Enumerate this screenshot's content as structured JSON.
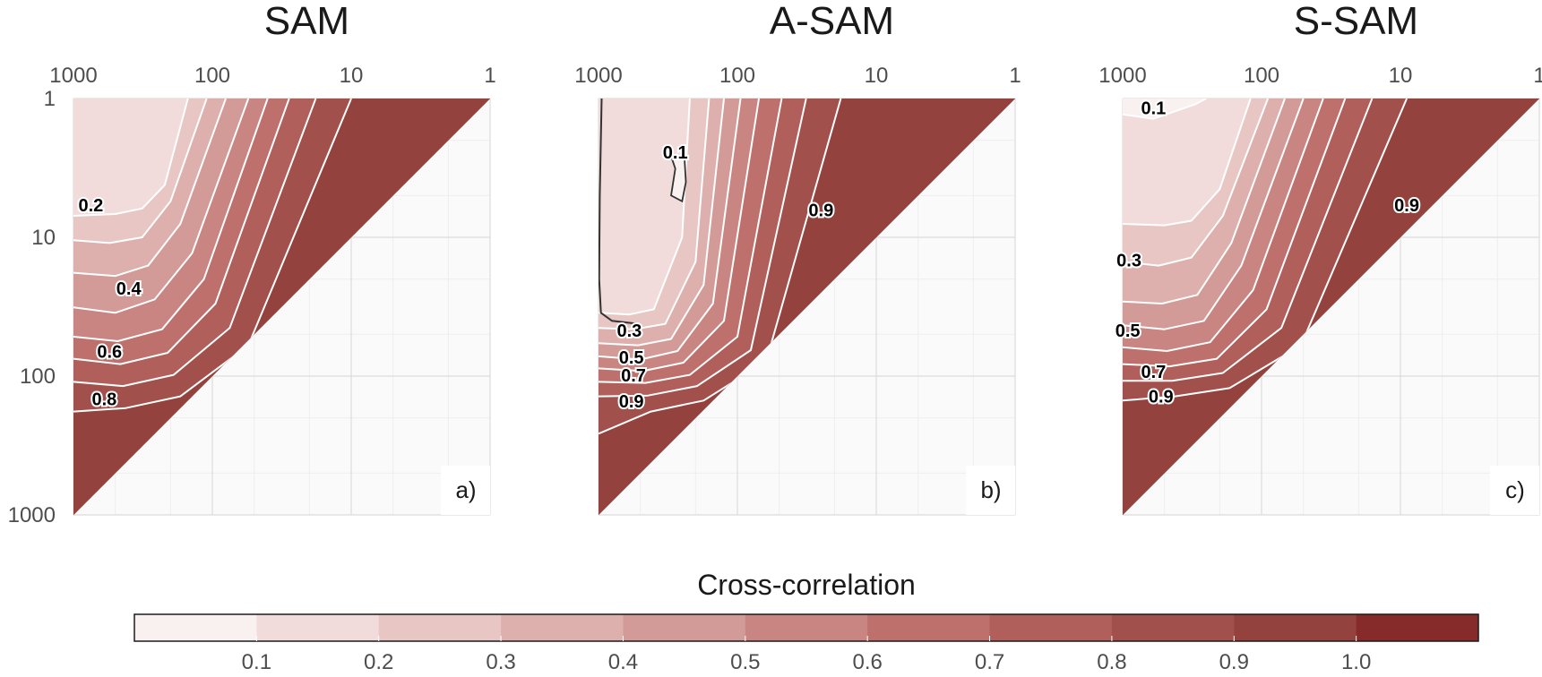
{
  "chart_data": {
    "type": "heatmap",
    "colorbar": {
      "title": "Cross-correlation",
      "tick_labels": [
        "0.1",
        "0.2",
        "0.3",
        "0.4",
        "0.5",
        "0.6",
        "0.7",
        "0.8",
        "0.9",
        "1.0"
      ],
      "colors": [
        "#f9f1f0",
        "#f1dcdb",
        "#e7c6c4",
        "#ddb0ad",
        "#d39b97",
        "#c98582",
        "#bd706c",
        "#b05f5b",
        "#a2504c",
        "#94423e",
        "#862a2a"
      ]
    },
    "axis_ticks": [
      "1000",
      "100",
      "10",
      "1"
    ],
    "y_axis_ticks": [
      "1",
      "10",
      "100",
      "1000"
    ],
    "panels": [
      {
        "title": "SAM",
        "letter": "a)",
        "contours": [
          {
            "level": 0.2,
            "points": [
              [
                1000,
                7
              ],
              [
                500,
                6.8
              ],
              [
                320,
                6.2
              ],
              [
                220,
                4.2
              ],
              [
                150,
                1
              ]
            ]
          },
          {
            "level": 0.3,
            "points": [
              [
                1000,
                10.5
              ],
              [
                550,
                11
              ],
              [
                320,
                10
              ],
              [
                200,
                5.5
              ],
              [
                110,
                1
              ]
            ]
          },
          {
            "level": 0.4,
            "points": [
              [
                1000,
                18
              ],
              [
                500,
                19
              ],
              [
                290,
                16
              ],
              [
                170,
                8
              ],
              [
                80,
                1
              ]
            ]
          },
          {
            "level": 0.5,
            "points": [
              [
                1000,
                32
              ],
              [
                500,
                35
              ],
              [
                260,
                28
              ],
              [
                140,
                13
              ],
              [
                55,
                1
              ]
            ]
          },
          {
            "level": 0.6,
            "points": [
              [
                1000,
                52
              ],
              [
                480,
                56
              ],
              [
                230,
                46
              ],
              [
                115,
                20
              ],
              [
                40,
                1
              ]
            ]
          },
          {
            "level": 0.7,
            "points": [
              [
                1000,
                75
              ],
              [
                460,
                82
              ],
              [
                210,
                68
              ],
              [
                95,
                30
              ],
              [
                28,
                1
              ]
            ]
          },
          {
            "level": 0.8,
            "points": [
              [
                1000,
                110
              ],
              [
                440,
                118
              ],
              [
                190,
                98
              ],
              [
                75,
                45
              ],
              [
                18,
                1
              ]
            ]
          },
          {
            "level": 0.9,
            "points": [
              [
                1000,
                180
              ],
              [
                420,
                170
              ],
              [
                170,
                140
              ],
              [
                55,
                60
              ],
              [
                10,
                1
              ]
            ]
          }
        ],
        "labels": [
          {
            "text": "0.2",
            "x": 750,
            "y": 6
          },
          {
            "text": "0.4",
            "x": 400,
            "y": 24
          },
          {
            "text": "0.6",
            "x": 550,
            "y": 68
          },
          {
            "text": "0.8",
            "x": 600,
            "y": 150
          }
        ],
        "boundary_0.1": null
      },
      {
        "title": "A-SAM",
        "letter": "b)",
        "contours": [
          {
            "level": 0.2,
            "points": [
              [
                1000,
                35
              ],
              [
                600,
                36
              ],
              [
                400,
                33
              ],
              [
                250,
                10
              ],
              [
                220,
                1
              ]
            ]
          },
          {
            "level": 0.3,
            "points": [
              [
                1000,
                45
              ],
              [
                550,
                46
              ],
              [
                330,
                42
              ],
              [
                200,
                15
              ],
              [
                160,
                1
              ]
            ]
          },
          {
            "level": 0.4,
            "points": [
              [
                1000,
                58
              ],
              [
                520,
                60
              ],
              [
                300,
                54
              ],
              [
                175,
                22
              ],
              [
                125,
                1
              ]
            ]
          },
          {
            "level": 0.5,
            "points": [
              [
                1000,
                72
              ],
              [
                500,
                76
              ],
              [
                270,
                66
              ],
              [
                150,
                30
              ],
              [
                95,
                1
              ]
            ]
          },
          {
            "level": 0.6,
            "points": [
              [
                1000,
                88
              ],
              [
                480,
                92
              ],
              [
                245,
                80
              ],
              [
                125,
                40
              ],
              [
                70,
                1
              ]
            ]
          },
          {
            "level": 0.7,
            "points": [
              [
                1000,
                110
              ],
              [
                460,
                112
              ],
              [
                220,
                98
              ],
              [
                100,
                52
              ],
              [
                48,
                1
              ]
            ]
          },
          {
            "level": 0.8,
            "points": [
              [
                1000,
                140
              ],
              [
                440,
                138
              ],
              [
                195,
                118
              ],
              [
                80,
                65
              ],
              [
                32,
                1
              ]
            ]
          },
          {
            "level": 0.9,
            "points": [
              [
                1000,
                260
              ],
              [
                420,
                180
              ],
              [
                175,
                150
              ],
              [
                62,
                78
              ],
              [
                18,
                1
              ]
            ]
          }
        ],
        "region_01": [
          [
            1000,
            1
          ],
          [
            1000,
            35
          ],
          [
            600,
            36
          ],
          [
            400,
            33
          ],
          [
            250,
            10
          ],
          [
            220,
            1
          ]
        ],
        "contour_01_dark": [
          [
            950,
            1
          ],
          [
            980,
            5
          ],
          [
            990,
            20
          ],
          [
            960,
            35
          ],
          [
            800,
            40
          ],
          [
            520,
            42
          ]
        ],
        "hole_01": [
          [
            300,
            2.6
          ],
          [
            280,
            3.2
          ],
          [
            300,
            5.0
          ],
          [
            250,
            5.5
          ],
          [
            235,
            4.0
          ],
          [
            240,
            2.8
          ]
        ],
        "labels": [
          {
            "text": "0.1",
            "x": 280,
            "y": 2.5
          },
          {
            "text": "0.9",
            "x": 25,
            "y": 6.5
          },
          {
            "text": "0.3",
            "x": 600,
            "y": 48
          },
          {
            "text": "0.5",
            "x": 580,
            "y": 75
          },
          {
            "text": "0.7",
            "x": 560,
            "y": 101
          },
          {
            "text": "0.9",
            "x": 580,
            "y": 155
          }
        ]
      },
      {
        "title": "S-SAM",
        "letter": "c)",
        "contours": [
          {
            "level": 0.1,
            "points": [
              [
                1000,
                1.3
              ],
              [
                600,
                1.4
              ],
              [
                300,
                1.1
              ],
              [
                250,
                1
              ]
            ]
          },
          {
            "level": 0.2,
            "points": [
              [
                1000,
                8
              ],
              [
                500,
                8.2
              ],
              [
                320,
                7.6
              ],
              [
                200,
                4.5
              ],
              [
                120,
                1
              ]
            ]
          },
          {
            "level": 0.3,
            "points": [
              [
                1000,
                15
              ],
              [
                550,
                16
              ],
              [
                320,
                14
              ],
              [
                190,
                7
              ],
              [
                90,
                1
              ]
            ]
          },
          {
            "level": 0.4,
            "points": [
              [
                1000,
                29
              ],
              [
                520,
                30
              ],
              [
                290,
                26
              ],
              [
                165,
                11
              ],
              [
                68,
                1
              ]
            ]
          },
          {
            "level": 0.5,
            "points": [
              [
                1000,
                43
              ],
              [
                500,
                46
              ],
              [
                260,
                40
              ],
              [
                140,
                16
              ],
              [
                50,
                1
              ]
            ]
          },
          {
            "level": 0.6,
            "points": [
              [
                1000,
                62
              ],
              [
                480,
                66
              ],
              [
                235,
                57
              ],
              [
                115,
                24
              ],
              [
                36,
                1
              ]
            ]
          },
          {
            "level": 0.7,
            "points": [
              [
                1000,
                82
              ],
              [
                460,
                85
              ],
              [
                210,
                75
              ],
              [
                92,
                33
              ],
              [
                25,
                1
              ]
            ]
          },
          {
            "level": 0.8,
            "points": [
              [
                1000,
                108
              ],
              [
                440,
                108
              ],
              [
                190,
                95
              ],
              [
                72,
                45
              ],
              [
                16,
                1
              ]
            ]
          },
          {
            "level": 0.9,
            "points": [
              [
                1000,
                150
              ],
              [
                420,
                140
              ],
              [
                170,
                122
              ],
              [
                52,
                60
              ],
              [
                9,
                1
              ]
            ]
          }
        ],
        "labels": [
          {
            "text": "0.1",
            "x": 600,
            "y": 1.2
          },
          {
            "text": "0.9",
            "x": 9,
            "y": 6
          },
          {
            "text": "0.3",
            "x": 900,
            "y": 15
          },
          {
            "text": "0.5",
            "x": 920,
            "y": 48
          },
          {
            "text": "0.7",
            "x": 600,
            "y": 95
          },
          {
            "text": "0.9",
            "x": 530,
            "y": 143
          }
        ]
      }
    ]
  }
}
